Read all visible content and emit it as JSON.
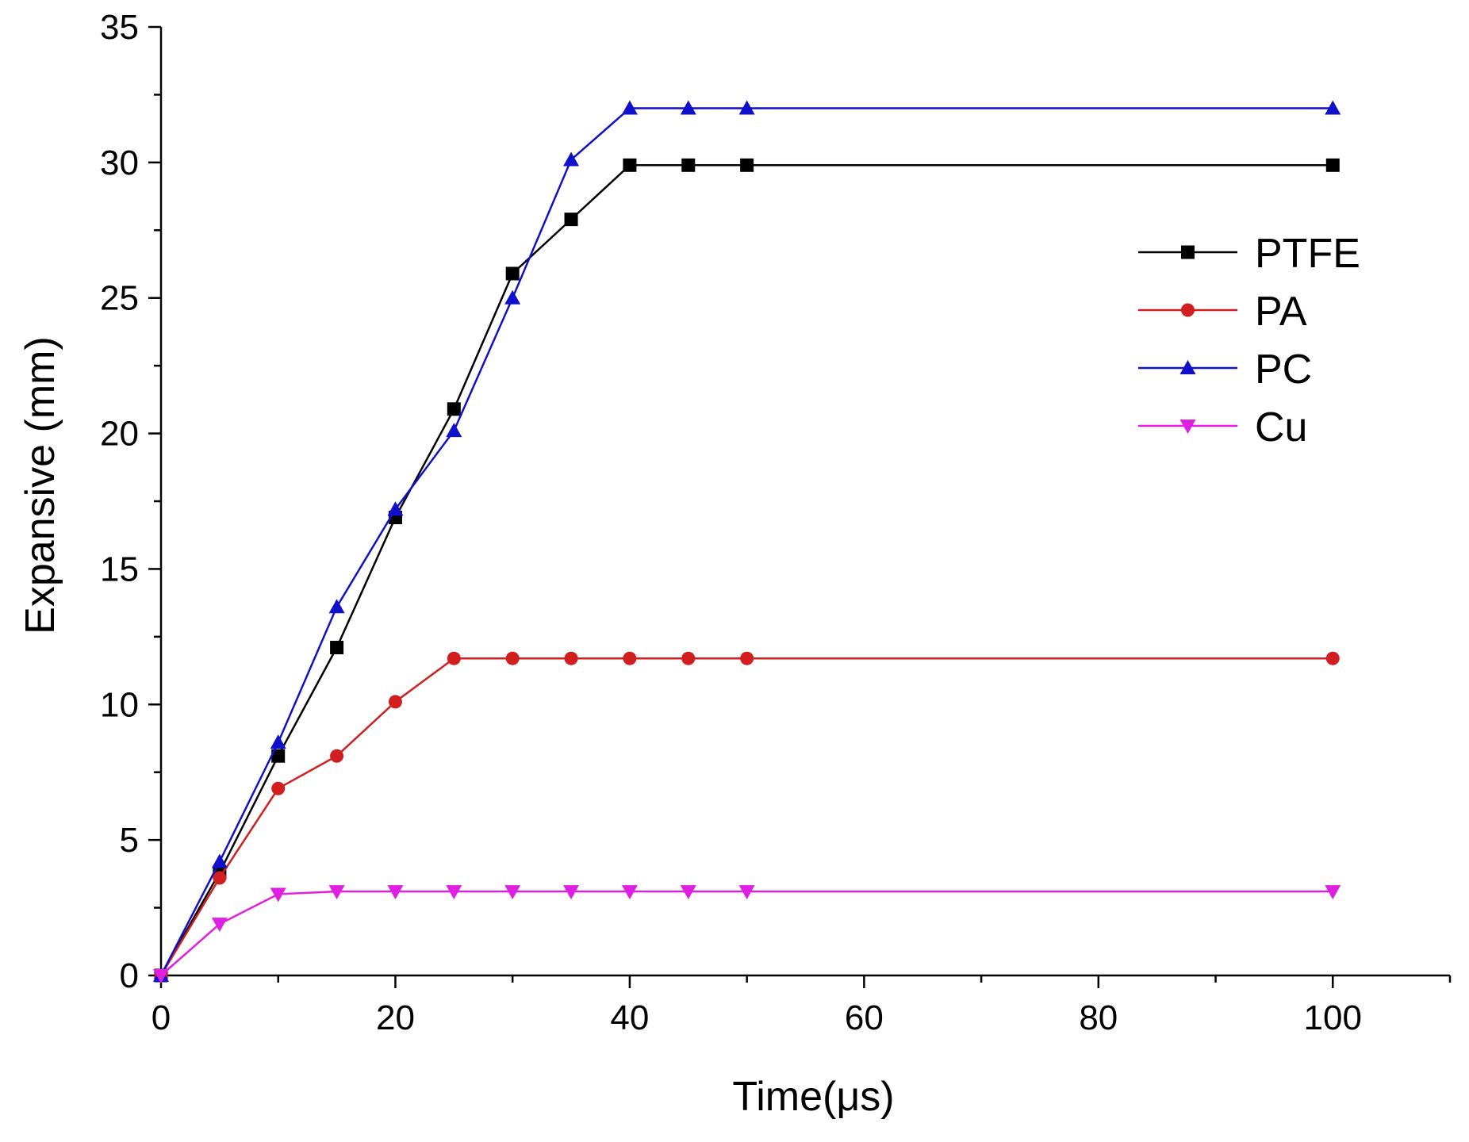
{
  "chart_data": {
    "type": "line",
    "title": "",
    "xlabel": "Time(μs)",
    "ylabel": "Expansive (mm)",
    "xlim": [
      0,
      110
    ],
    "ylim": [
      0,
      35
    ],
    "x_ticks": [
      0,
      20,
      40,
      60,
      80,
      100
    ],
    "x_minor_ticks": [
      10,
      30,
      50,
      70,
      90,
      110
    ],
    "y_ticks": [
      0,
      5,
      10,
      15,
      20,
      25,
      30,
      35
    ],
    "y_minor_ticks": [
      2.5,
      7.5,
      12.5,
      17.5,
      22.5,
      27.5,
      32.5
    ],
    "grid": false,
    "legend_position": "right, upper-middle",
    "x": [
      0,
      5,
      10,
      15,
      20,
      25,
      30,
      35,
      40,
      45,
      50,
      100
    ],
    "series": [
      {
        "name": "PTFE",
        "color": "#000000",
        "marker": "square",
        "values": [
          0,
          3.8,
          8.1,
          12.1,
          16.9,
          20.9,
          25.9,
          27.9,
          29.9,
          29.9,
          29.9,
          29.9
        ]
      },
      {
        "name": "PA",
        "color": "#d11f1f",
        "marker": "circle",
        "values": [
          0,
          3.6,
          6.9,
          8.1,
          10.1,
          11.7,
          11.7,
          11.7,
          11.7,
          11.7,
          11.7,
          11.7
        ]
      },
      {
        "name": "PC",
        "color": "#1010cc",
        "marker": "triangle-up",
        "values": [
          0,
          4.2,
          8.6,
          13.6,
          17.2,
          20.1,
          25.0,
          30.1,
          32.0,
          32.0,
          32.0,
          32.0
        ]
      },
      {
        "name": "Cu",
        "color": "#e020e0",
        "marker": "triangle-down",
        "values": [
          0,
          1.9,
          3.0,
          3.1,
          3.1,
          3.1,
          3.1,
          3.1,
          3.1,
          3.1,
          3.1,
          3.1
        ]
      }
    ]
  }
}
